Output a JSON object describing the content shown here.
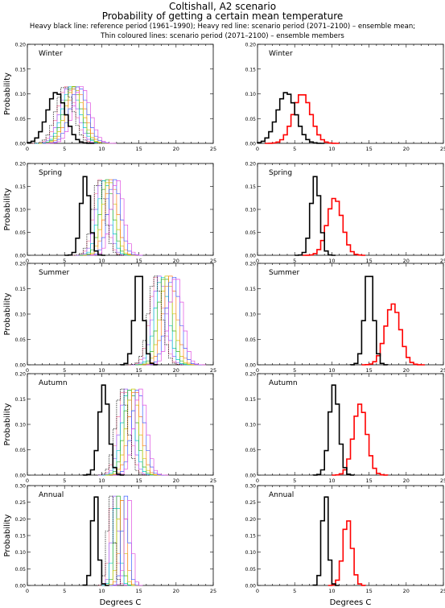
{
  "header": {
    "title_line1": "Coltishall, A2 scenario",
    "title_line2": "Probability of getting a certain mean temperature",
    "desc_line1": "Heavy black line: reference period (1961–1990); Heavy red line: scenario period (2071–2100) – ensemble mean;",
    "desc_line2": "Thin coloured lines: scenario period (2071–2100) – ensemble members"
  },
  "chart_data": {
    "type": "histogram-panels",
    "xlabel": "Degrees C",
    "ylabel": "Probability",
    "xlim": [
      0,
      25
    ],
    "xticks": [
      0,
      5,
      10,
      15,
      20,
      25
    ],
    "colors": {
      "reference": "#000000",
      "scenario_mean": "#ff0000",
      "members": [
        "#ff7f9f",
        "#9f5fff",
        "#00c8c8",
        "#30b030",
        "#c8c800",
        "#ff8020",
        "#4060ff",
        "#e050e0",
        "#000000"
      ]
    },
    "panels": [
      {
        "season": "Winter",
        "ylim": [
          0,
          0.2
        ],
        "yticks": [
          0.0,
          0.05,
          0.1,
          0.15,
          0.2
        ],
        "reference": {
          "mean": 3.9,
          "sd": 1.25,
          "peak": 0.103
        },
        "scenario_mean": {
          "mean": 6.0,
          "sd": 1.2,
          "peak": 0.1
        },
        "members": [
          5.3,
          5.6,
          5.9,
          6.1,
          6.3,
          6.6,
          6.9,
          7.3,
          5.0
        ],
        "member_peak": 0.115,
        "member_sd": 1.15
      },
      {
        "season": "Spring",
        "ylim": [
          0,
          0.2
        ],
        "yticks": [
          0.0,
          0.05,
          0.1,
          0.15,
          0.2
        ],
        "reference": {
          "mean": 7.8,
          "sd": 0.6,
          "peak": 0.172
        },
        "scenario_mean": {
          "mean": 10.4,
          "sd": 1.0,
          "peak": 0.125
        },
        "members": [
          9.8,
          10.1,
          10.4,
          10.7,
          11.0,
          11.3,
          11.7,
          12.1,
          9.6
        ],
        "member_peak": 0.165,
        "member_sd": 0.85
      },
      {
        "season": "Summer",
        "ylim": [
          0,
          0.2
        ],
        "yticks": [
          0.0,
          0.05,
          0.1,
          0.15,
          0.2
        ],
        "reference": {
          "mean": 15.0,
          "sd": 0.6,
          "peak": 0.19
        },
        "scenario_mean": {
          "mean": 18.2,
          "sd": 1.0,
          "peak": 0.12
        },
        "members": [
          17.4,
          17.8,
          18.1,
          18.5,
          18.8,
          19.2,
          19.6,
          20.0,
          17.2
        ],
        "member_peak": 0.175,
        "member_sd": 0.9
      },
      {
        "season": "Autumn",
        "ylim": [
          0,
          0.2
        ],
        "yticks": [
          0.0,
          0.05,
          0.1,
          0.15,
          0.2
        ],
        "reference": {
          "mean": 10.3,
          "sd": 0.65,
          "peak": 0.178
        },
        "scenario_mean": {
          "mean": 13.8,
          "sd": 0.9,
          "peak": 0.14
        },
        "members": [
          13.0,
          13.3,
          13.6,
          13.9,
          14.2,
          14.5,
          14.9,
          15.2,
          12.7
        ],
        "member_peak": 0.17,
        "member_sd": 0.85
      },
      {
        "season": "Annual",
        "ylim": [
          0,
          0.3
        ],
        "yticks": [
          0.0,
          0.05,
          0.1,
          0.15,
          0.2,
          0.25,
          0.3
        ],
        "reference": {
          "mean": 9.1,
          "sd": 0.4,
          "peak": 0.285
        },
        "scenario_mean": {
          "mean": 12.1,
          "sd": 0.6,
          "peak": 0.2
        },
        "members": [
          11.5,
          11.8,
          12.0,
          12.3,
          12.6,
          12.9,
          13.2,
          13.6,
          11.2
        ],
        "member_peak": 0.27,
        "member_sd": 0.45
      }
    ]
  }
}
